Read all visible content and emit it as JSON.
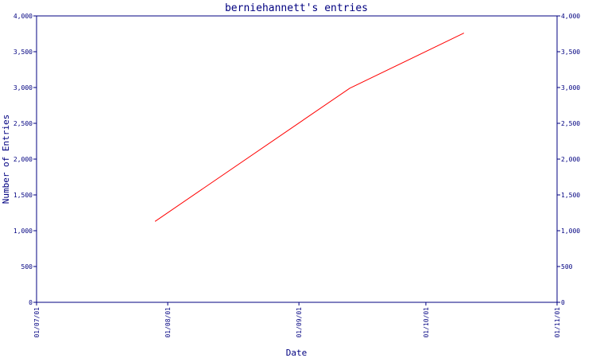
{
  "chart_data": {
    "type": "line",
    "title": "berniehannett's entries",
    "xlabel": "Date",
    "ylabel": "Number of Entries",
    "ylim": [
      0,
      4000
    ],
    "y_ticks": [
      0,
      500,
      1000,
      1500,
      2000,
      2500,
      3000,
      3500,
      4000
    ],
    "y_tick_labels": [
      "0",
      "500",
      "1,000",
      "1,500",
      "2,000",
      "2,500",
      "3,000",
      "3,500",
      "4,000"
    ],
    "x_range": [
      "2001-07-01",
      "2001-11-01"
    ],
    "x_ticks": [
      "2001-07-01",
      "2001-08-01",
      "2001-09-01",
      "2001-10-01",
      "2001-11-01"
    ],
    "x_tick_labels": [
      "01/07/01",
      "01/08/01",
      "01/09/01",
      "01/10/01",
      "01/11/01"
    ],
    "grid": false,
    "series": [
      {
        "color": "#ff0000",
        "x": [
          "2001-07-29",
          "2001-09-13",
          "2001-10-10"
        ],
        "y": [
          1130,
          2990,
          3760
        ]
      }
    ]
  }
}
